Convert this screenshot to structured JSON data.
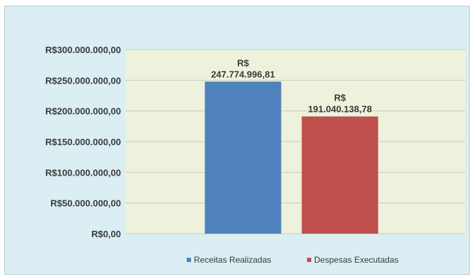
{
  "chart_data": {
    "type": "bar",
    "categories": [
      ""
    ],
    "series": [
      {
        "name": "Receitas Realizadas",
        "values": [
          247774996.81
        ],
        "color": "#4f81bd",
        "label_top": "R$",
        "label_bottom": "247.774.996,81"
      },
      {
        "name": "Despesas Executadas",
        "values": [
          191040138.78
        ],
        "color": "#c0504d",
        "label_top": "R$",
        "label_bottom": "191.040.138,78"
      }
    ],
    "title": "",
    "xlabel": "",
    "ylabel": "",
    "ylim": [
      0,
      300000000
    ],
    "yticks": [
      {
        "value": 0,
        "label": "R$0,00"
      },
      {
        "value": 50000000,
        "label": "R$50.000.000,00"
      },
      {
        "value": 100000000,
        "label": "R$100.000.000,00"
      },
      {
        "value": 150000000,
        "label": "R$150.000.000,00"
      },
      {
        "value": 200000000,
        "label": "R$200.000.000,00"
      },
      {
        "value": 250000000,
        "label": "R$250.000.000,00"
      },
      {
        "value": 300000000,
        "label": "R$300.000.000,00"
      }
    ],
    "grid": true,
    "legend_position": "bottom",
    "plot_background": "#eef2dc",
    "chart_background": "#daeef3"
  }
}
